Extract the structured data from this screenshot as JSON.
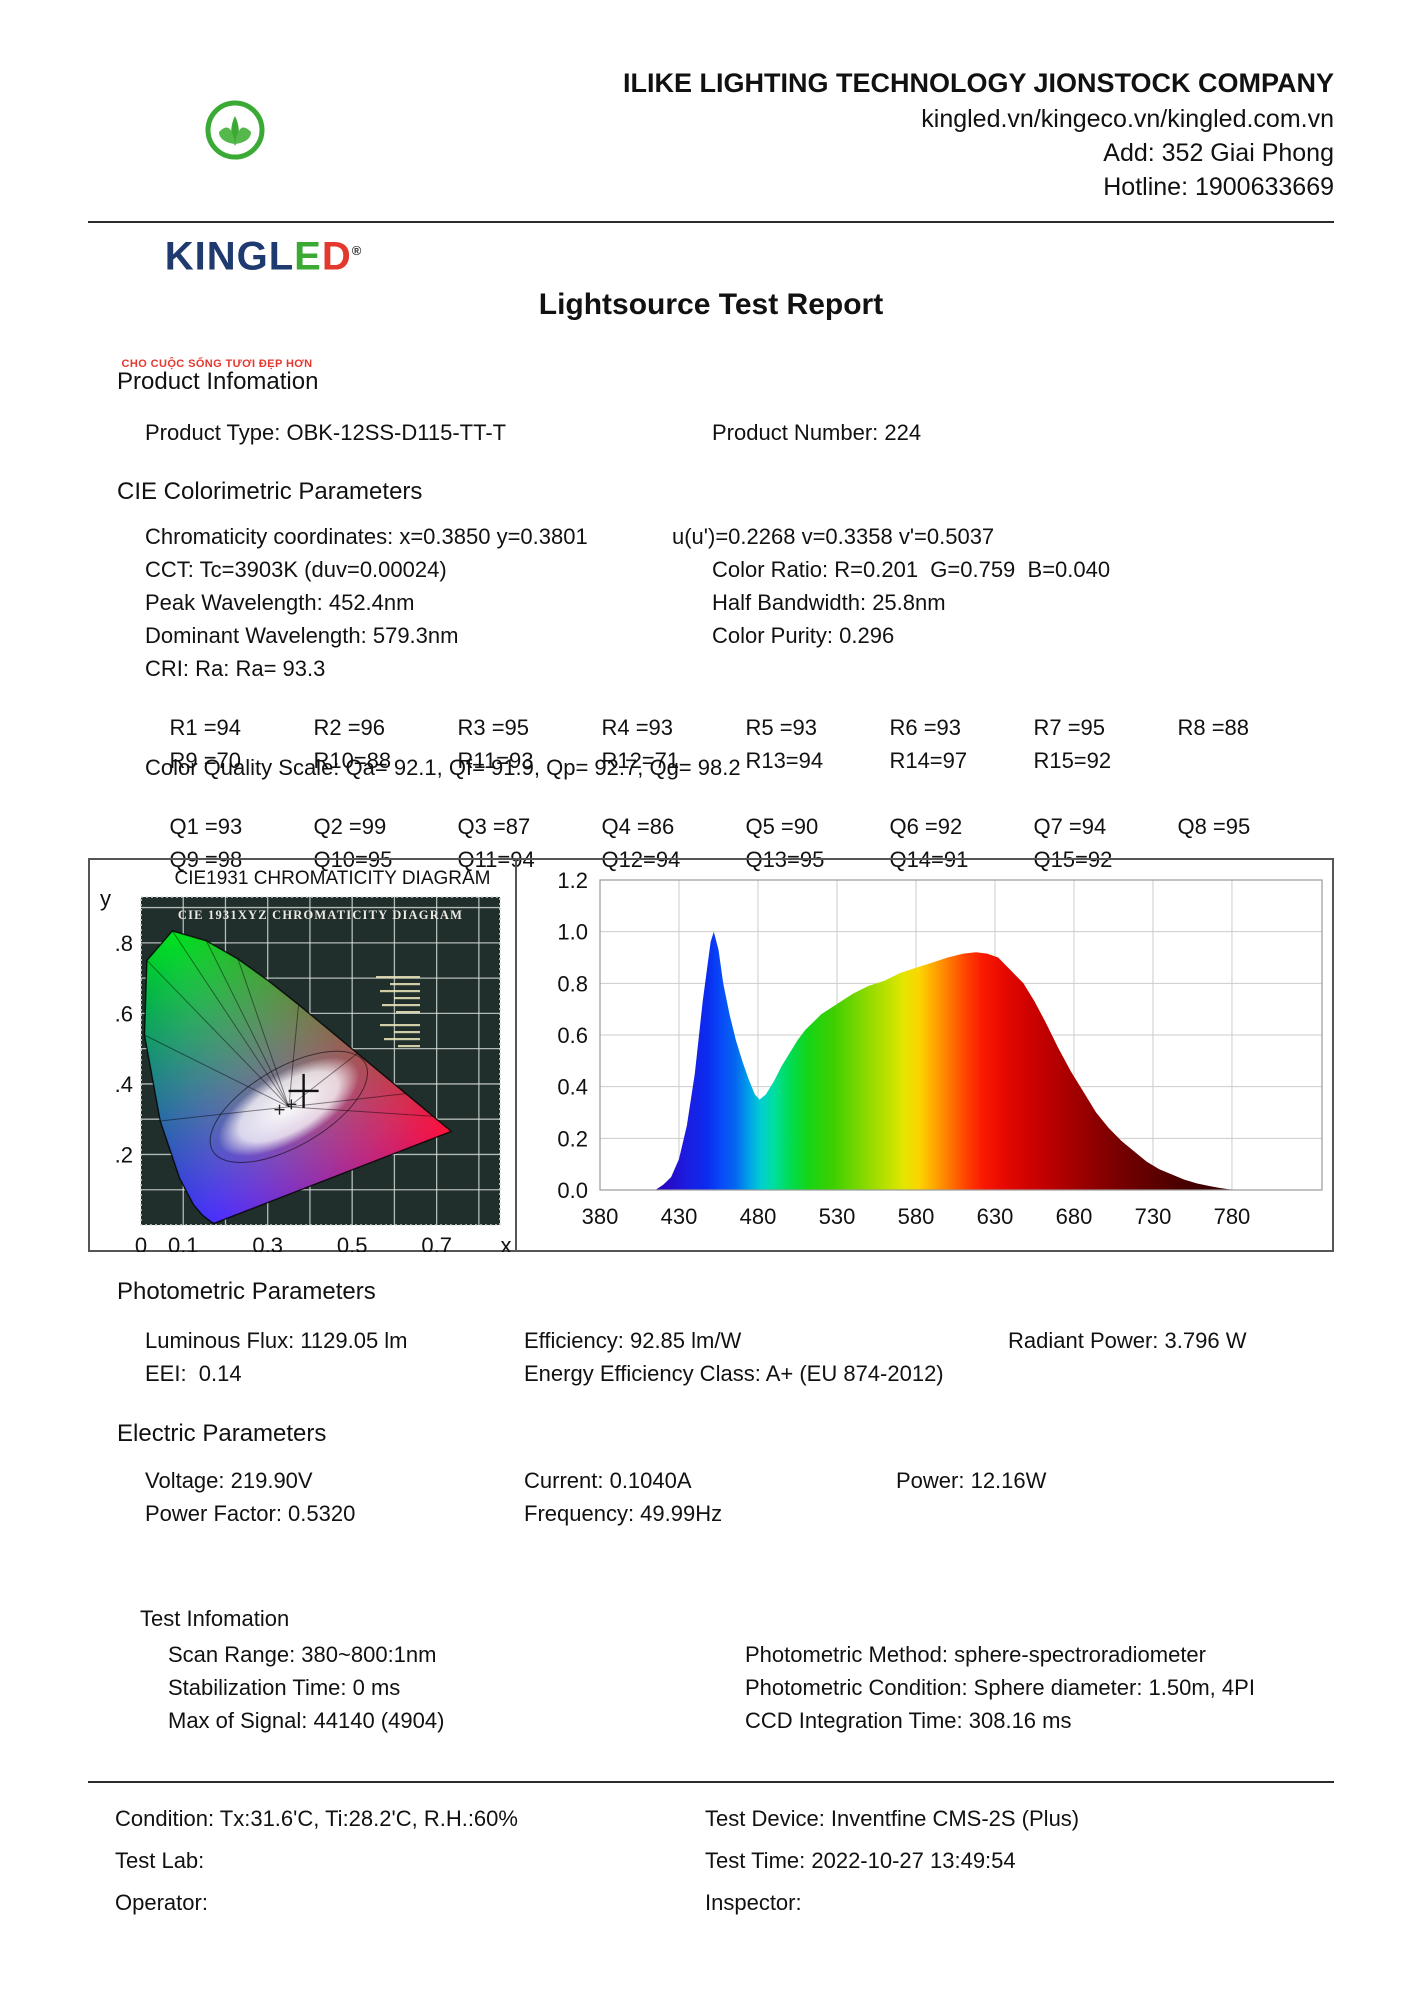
{
  "header": {
    "company": "ILIKE LIGHTING TECHNOLOGY JIONSTOCK COMPANY",
    "websites": "kingled.vn/kingeco.vn/kingled.com.vn",
    "address": "Add: 352 Giai Phong",
    "hotline": "Hotline: 1900633669",
    "logo": {
      "text_king": "KINGL",
      "text_e": "E",
      "text_d": "D",
      "registered": "®",
      "tagline": "CHO CUỘC SỐNG TƯƠI ĐẸP HƠN",
      "brand_green": "#3aaa35",
      "brand_blue": "#1e3a6e",
      "brand_red": "#e2382e"
    }
  },
  "title": "Lightsource Test Report",
  "product": {
    "heading": "Product Infomation",
    "type": "Product Type: OBK-12SS-D115-TT-T",
    "number": "Product Number: 224"
  },
  "cie": {
    "heading": "CIE Colorimetric Parameters",
    "chromaticity": "Chromaticity coordinates: x=0.3850 y=0.3801",
    "uv": "u(u')=0.2268 v=0.3358 v'=0.5037",
    "cct": "CCT: Tc=3903K (duv=0.00024)",
    "color_ratio": "Color Ratio: R=0.201  G=0.759  B=0.040",
    "peak_wavelength": "Peak Wavelength: 452.4nm",
    "half_bandwidth": "Half Bandwidth: 25.8nm",
    "dominant_wavelength": "Dominant Wavelength: 579.3nm",
    "color_purity": "Color Purity: 0.296",
    "cri": "CRI: Ra: Ra= 93.3",
    "r_row1": [
      "R1 =94",
      "R2 =96",
      "R3 =95",
      "R4 =93",
      "R5 =93",
      "R6 =93",
      "R7 =95",
      "R8 =88"
    ],
    "r_row2": [
      "R9 =70",
      "R10=88",
      "R11=93",
      "R12=71",
      "R13=94",
      "R14=97",
      "R15=92"
    ],
    "cqs": "Color Quality Scale: Qa= 92.1, Qf= 91.9, Qp= 92.7, Qg= 98.2",
    "q_row1": [
      "Q1 =93",
      "Q2 =99",
      "Q3 =87",
      "Q4 =86",
      "Q5 =90",
      "Q6 =92",
      "Q7 =94",
      "Q8 =95"
    ],
    "q_row2": [
      "Q9 =98",
      "Q10=95",
      "Q11=94",
      "Q12=94",
      "Q13=95",
      "Q14=91",
      "Q15=92"
    ]
  },
  "chart_data": [
    {
      "type": "area",
      "name": "cie1931-chromaticity-diagram",
      "title": "CIE1931 CHROMATICITY DIAGRAM",
      "inner_title": "CIE 1931XYZ CHROMATICITY DIAGRAM",
      "xlabel": "x",
      "ylabel": "y",
      "x_tick_vals": [
        0,
        0.1,
        0.3,
        0.5,
        0.7
      ],
      "x_tick_labels": [
        "0",
        "0.1",
        "0.3",
        "0.5",
        "0.7"
      ],
      "y_tick_vals": [
        0.8,
        0.6,
        0.4,
        0.2
      ],
      "y_tick_labels": [
        ".8",
        ".6",
        ".4",
        ".2"
      ],
      "xlim": [
        0,
        0.85
      ],
      "ylim": [
        0,
        0.93
      ],
      "grid_step": 0.1,
      "point": {
        "x": 0.385,
        "y": 0.3801
      },
      "locus": [
        [
          0.1741,
          0.005
        ],
        [
          0.1714,
          0.0051
        ],
        [
          0.1689,
          0.0069
        ],
        [
          0.1644,
          0.0109
        ],
        [
          0.1566,
          0.0177
        ],
        [
          0.144,
          0.0297
        ],
        [
          0.1241,
          0.0578
        ],
        [
          0.0913,
          0.1327
        ],
        [
          0.0454,
          0.295
        ],
        [
          0.0082,
          0.5384
        ],
        [
          0.0139,
          0.7502
        ],
        [
          0.0743,
          0.8338
        ],
        [
          0.1547,
          0.8059
        ],
        [
          0.2296,
          0.7543
        ],
        [
          0.3016,
          0.6923
        ],
        [
          0.3731,
          0.6245
        ],
        [
          0.4441,
          0.5547
        ],
        [
          0.5125,
          0.4866
        ],
        [
          0.5752,
          0.4242
        ],
        [
          0.627,
          0.3725
        ],
        [
          0.6658,
          0.334
        ],
        [
          0.6915,
          0.3083
        ],
        [
          0.7079,
          0.292
        ],
        [
          0.719,
          0.2809
        ],
        [
          0.7347,
          0.2653
        ]
      ]
    },
    {
      "type": "area",
      "name": "spectral-power-distribution",
      "title": "",
      "xlabel": "",
      "ylabel": "",
      "x_ticks": [
        380,
        430,
        480,
        530,
        580,
        630,
        680,
        730,
        780
      ],
      "y_tick_labels": [
        "0.0",
        "0.2",
        "0.4",
        "0.6",
        "0.8",
        "1.0",
        "1.2"
      ],
      "xlim": [
        380,
        837
      ],
      "ylim": [
        0,
        1.2
      ],
      "points": [
        [
          415,
          0
        ],
        [
          420,
          0.02
        ],
        [
          425,
          0.05
        ],
        [
          430,
          0.12
        ],
        [
          435,
          0.25
        ],
        [
          440,
          0.45
        ],
        [
          445,
          0.73
        ],
        [
          450,
          0.96
        ],
        [
          452,
          1.0
        ],
        [
          455,
          0.93
        ],
        [
          458,
          0.8
        ],
        [
          462,
          0.68
        ],
        [
          466,
          0.58
        ],
        [
          470,
          0.5
        ],
        [
          474,
          0.43
        ],
        [
          478,
          0.37
        ],
        [
          481,
          0.35
        ],
        [
          485,
          0.37
        ],
        [
          490,
          0.42
        ],
        [
          495,
          0.48
        ],
        [
          500,
          0.53
        ],
        [
          505,
          0.58
        ],
        [
          510,
          0.62
        ],
        [
          515,
          0.65
        ],
        [
          520,
          0.68
        ],
        [
          530,
          0.72
        ],
        [
          540,
          0.76
        ],
        [
          550,
          0.79
        ],
        [
          560,
          0.81
        ],
        [
          570,
          0.84
        ],
        [
          580,
          0.86
        ],
        [
          590,
          0.88
        ],
        [
          600,
          0.9
        ],
        [
          610,
          0.915
        ],
        [
          618,
          0.92
        ],
        [
          625,
          0.915
        ],
        [
          632,
          0.9
        ],
        [
          640,
          0.85
        ],
        [
          648,
          0.8
        ],
        [
          655,
          0.73
        ],
        [
          662,
          0.65
        ],
        [
          670,
          0.55
        ],
        [
          678,
          0.46
        ],
        [
          686,
          0.38
        ],
        [
          694,
          0.3
        ],
        [
          702,
          0.24
        ],
        [
          710,
          0.19
        ],
        [
          718,
          0.15
        ],
        [
          726,
          0.11
        ],
        [
          734,
          0.08
        ],
        [
          742,
          0.06
        ],
        [
          750,
          0.04
        ],
        [
          758,
          0.025
        ],
        [
          766,
          0.015
        ],
        [
          772,
          0.008
        ],
        [
          778,
          0.003
        ],
        [
          784,
          0
        ]
      ]
    }
  ],
  "photometric": {
    "heading": "Photometric Parameters",
    "luminous_flux": "Luminous Flux: 1129.05 lm",
    "efficiency": "Efficiency: 92.85 lm/W",
    "radiant_power": "Radiant Power: 3.796 W",
    "eei": "EEI:  0.14",
    "energy_class": "Energy Efficiency Class: A+ (EU 874-2012)"
  },
  "electric": {
    "heading": "Electric Parameters",
    "voltage": "Voltage: 219.90V",
    "current": "Current: 0.1040A",
    "power": "Power: 12.16W",
    "power_factor": "Power Factor: 0.5320",
    "frequency": "Frequency: 49.99Hz"
  },
  "test_info": {
    "heading": "Test Infomation",
    "scan_range": "Scan Range: 380~800:1nm",
    "stabilization": "Stabilization Time: 0 ms",
    "max_signal": "Max of Signal: 44140 (4904)",
    "method": "Photometric Method: sphere-spectroradiometer",
    "condition": "Photometric Condition: Sphere diameter: 1.50m, 4PI",
    "ccd": "CCD Integration Time: 308.16 ms"
  },
  "footer": {
    "condition": "Condition: Tx:31.6'C, Ti:28.2'C, R.H.:60%",
    "test_lab": "Test Lab:",
    "operator": "Operator:",
    "device": "Test Device: Inventfine CMS-2S (Plus)",
    "time": "Test Time: 2022-10-27 13:49:54",
    "inspector": "Inspector:"
  }
}
